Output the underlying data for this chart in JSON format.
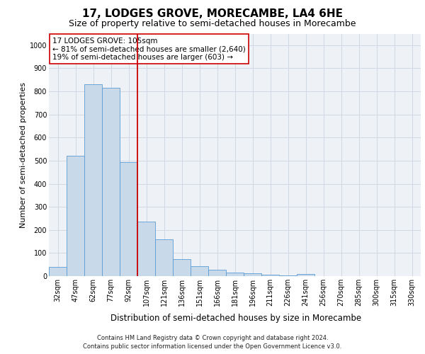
{
  "title1": "17, LODGES GROVE, MORECAMBE, LA4 6HE",
  "title2": "Size of property relative to semi-detached houses in Morecambe",
  "xlabel": "Distribution of semi-detached houses by size in Morecambe",
  "ylabel": "Number of semi-detached properties",
  "footer1": "Contains HM Land Registry data © Crown copyright and database right 2024.",
  "footer2": "Contains public sector information licensed under the Open Government Licence v3.0.",
  "categories": [
    "32sqm",
    "47sqm",
    "62sqm",
    "77sqm",
    "92sqm",
    "107sqm",
    "121sqm",
    "136sqm",
    "151sqm",
    "166sqm",
    "181sqm",
    "196sqm",
    "211sqm",
    "226sqm",
    "241sqm",
    "256sqm",
    "270sqm",
    "285sqm",
    "300sqm",
    "315sqm",
    "330sqm"
  ],
  "values": [
    40,
    520,
    830,
    815,
    495,
    235,
    160,
    75,
    42,
    28,
    15,
    12,
    6,
    3,
    10,
    0,
    0,
    0,
    0,
    0,
    0
  ],
  "bar_color": "#c8d9ea",
  "bar_edge_color": "#5b9bd5",
  "vline_x": 4.5,
  "vline_color": "#cc0000",
  "annotation_text": "17 LODGES GROVE: 105sqm\n← 81% of semi-detached houses are smaller (2,640)\n19% of semi-detached houses are larger (603) →",
  "annotation_box_color": "#ffffff",
  "annotation_box_edge": "#cc0000",
  "ylim": [
    0,
    1050
  ],
  "yticks": [
    0,
    100,
    200,
    300,
    400,
    500,
    600,
    700,
    800,
    900,
    1000
  ],
  "grid_color": "#d0d8e4",
  "bg_color": "#eef2f7",
  "title1_fontsize": 11,
  "title2_fontsize": 9,
  "footer_fontsize": 6,
  "ylabel_fontsize": 8,
  "xlabel_fontsize": 8.5,
  "tick_fontsize": 7,
  "ann_fontsize": 7.5
}
